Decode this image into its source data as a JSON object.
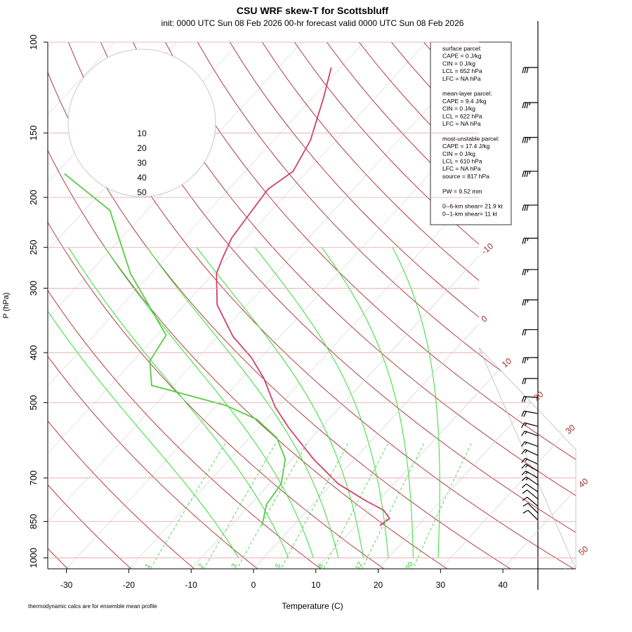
{
  "chart_data": {
    "type": "skewt",
    "title": "CSU WRF skew-T for Scottsbluff",
    "subtitle": "init: 0000 UTC Sun 08 Feb 2026     00-hr forecast valid 0000 UTC Sun 08 Feb 2026",
    "x_label": "Temperature (C)",
    "y_label": "P (hPa)",
    "footnote": "thermodynamic calcs are for ensemble mean profile",
    "xlim": [
      -33,
      51.7
    ],
    "xticks": [
      -30,
      -20,
      -10,
      0,
      10,
      20,
      30,
      40
    ],
    "ylim": [
      1050,
      100
    ],
    "yticks": [
      100,
      150,
      200,
      250,
      300,
      400,
      500,
      700,
      850,
      1000
    ],
    "log_scale": true,
    "isotherm_labels": [
      -10,
      0,
      10,
      20,
      30,
      40,
      50
    ],
    "mixing_ratio_labels": [
      1,
      2,
      3,
      5,
      8,
      12,
      20
    ],
    "series": [
      {
        "color": "#d0406a",
        "pressure": [
          866,
          839,
          808,
          776,
          718,
          643,
          559,
          509,
          449,
          409,
          372,
          323,
          281,
          264,
          240,
          219,
          193,
          178,
          155,
          128,
          112
        ],
        "values": [
          13.9,
          14.4,
          12.2,
          8.1,
          1.0,
          -6.6,
          -15.2,
          -20.5,
          -26.4,
          -31.5,
          -37.6,
          -44.8,
          -49.5,
          -50.7,
          -52.3,
          -52.9,
          -53.7,
          -52.3,
          -54.1,
          -58.3,
          -61.5
        ]
      },
      {
        "color": "#55cc44",
        "pressure": [
          866,
          788,
          718,
          643,
          585,
          539,
          506,
          463,
          415,
          370,
          281,
          212,
          180
        ],
        "values": [
          -5.0,
          -7.4,
          -8.1,
          -11.1,
          -15.6,
          -21.5,
          -28.6,
          -43.4,
          -47.3,
          -48.5,
          -63.3,
          -75.9,
          -88.6
        ]
      }
    ],
    "wind_barbs": {
      "pressure": [
        112,
        131,
        153,
        178,
        207,
        240,
        276,
        316,
        361,
        409,
        449,
        489,
        525,
        556,
        580,
        608,
        633,
        658,
        679,
        700,
        722,
        745,
        769,
        794,
        819,
        845
      ],
      "speed": [
        30,
        35,
        35,
        35,
        30,
        25,
        25,
        25,
        20,
        25,
        20,
        20,
        20,
        15,
        15,
        15,
        15,
        15,
        15,
        15,
        15,
        10,
        10,
        10,
        10,
        10
      ],
      "direction": [
        270,
        270,
        270,
        270,
        270,
        270,
        270,
        270,
        270,
        270,
        270,
        275,
        280,
        285,
        290,
        290,
        295,
        295,
        300,
        300,
        305,
        305,
        310,
        310,
        315,
        315
      ]
    },
    "hodograph_rings": [
      10,
      20,
      30,
      40,
      50
    ],
    "info_box": [
      [
        "surface parcel:",
        "CAPE = 0 J/kg",
        "CIN = 0 J/kg",
        "LCL = 652 hPa",
        "LFC = NA hPa"
      ],
      [
        "mean-layer parcel:",
        "CAPE = 9.4 J/kg",
        "CIN = 0 J/kg",
        "LCL = 622 hPa",
        "LFC = NA hPa"
      ],
      [
        "most-unstable parcel:",
        "CAPE = 17.4 J/kg",
        "CIN = 0 J/kg",
        "LCL = 610 hPa",
        "LFC = NA hPa",
        "source = 817 hPa"
      ],
      [
        "PW =  9.52 mm"
      ],
      [
        "0--6-km shear= 21.9 kt",
        "0--1-km shear= 11 kt"
      ]
    ]
  }
}
